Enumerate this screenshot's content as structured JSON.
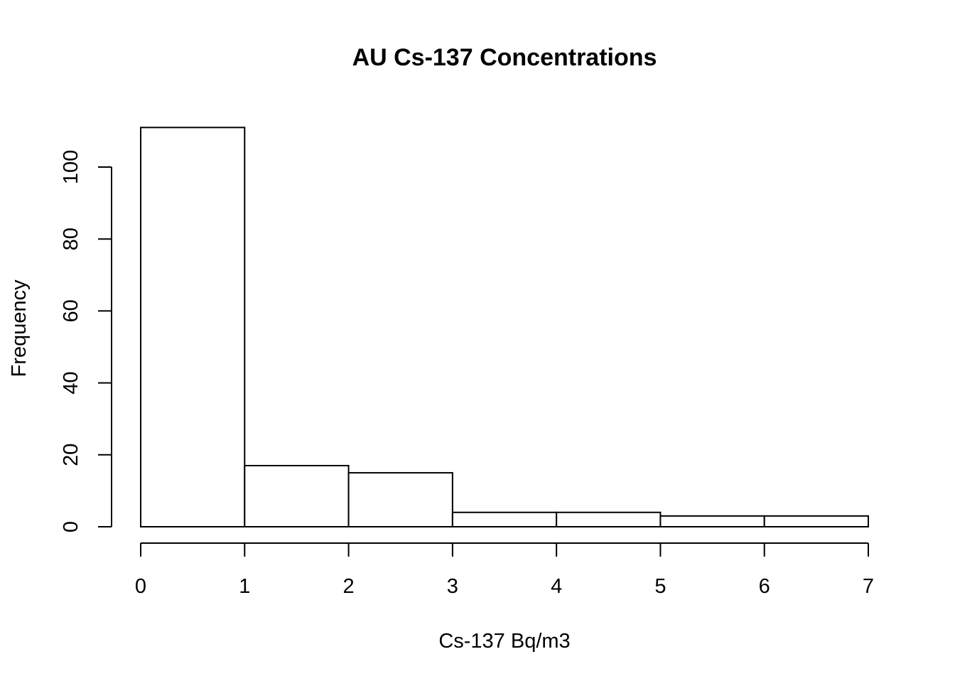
{
  "chart_data": {
    "type": "bar",
    "title": "AU Cs-137 Concentrations",
    "xlabel": "Cs-137 Bq/m3",
    "ylabel": "Frequency",
    "bins": [
      {
        "x0": 0,
        "x1": 1,
        "count": 111
      },
      {
        "x0": 1,
        "x1": 2,
        "count": 17
      },
      {
        "x0": 2,
        "x1": 3,
        "count": 15
      },
      {
        "x0": 3,
        "x1": 4,
        "count": 4
      },
      {
        "x0": 4,
        "x1": 5,
        "count": 4
      },
      {
        "x0": 5,
        "x1": 6,
        "count": 3
      },
      {
        "x0": 6,
        "x1": 7,
        "count": 3
      }
    ],
    "xlim": [
      0,
      7
    ],
    "ylim": [
      0,
      111
    ],
    "x_ticks": [
      "0",
      "1",
      "2",
      "3",
      "4",
      "5",
      "6",
      "7"
    ],
    "y_ticks": [
      "0",
      "20",
      "40",
      "60",
      "80",
      "100"
    ],
    "grid": false,
    "legend": "none"
  }
}
